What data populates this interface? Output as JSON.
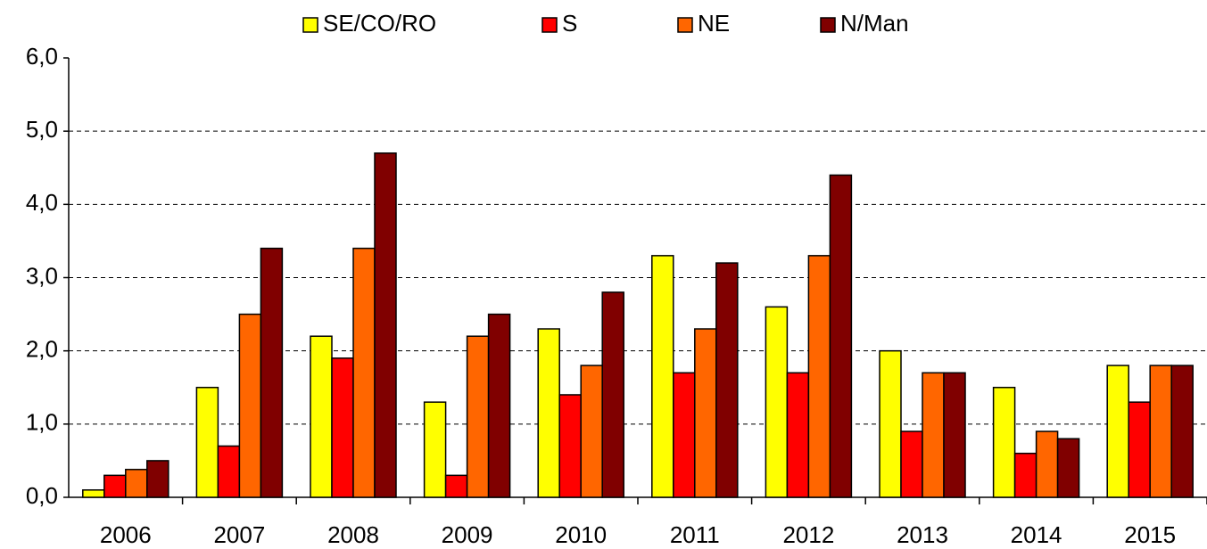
{
  "chart_data": {
    "type": "bar",
    "categories": [
      "2006",
      "2007",
      "2008",
      "2009",
      "2010",
      "2011",
      "2012",
      "2013",
      "2014",
      "2015"
    ],
    "series": [
      {
        "name": "SE/CO/RO",
        "color": "#ffff00",
        "values": [
          0.1,
          1.5,
          2.2,
          1.3,
          2.3,
          3.3,
          2.6,
          2.0,
          1.5,
          1.8
        ]
      },
      {
        "name": "S",
        "color": "#ff0000",
        "values": [
          0.3,
          0.7,
          1.9,
          0.3,
          1.4,
          1.7,
          1.7,
          0.9,
          0.6,
          1.3
        ]
      },
      {
        "name": "NE",
        "color": "#ff6600",
        "values": [
          0.38,
          2.5,
          3.4,
          2.2,
          1.8,
          2.3,
          3.3,
          1.7,
          0.9,
          1.8
        ]
      },
      {
        "name": "N/Man",
        "color": "#800000",
        "values": [
          0.5,
          3.4,
          4.7,
          2.5,
          2.8,
          3.2,
          4.4,
          1.7,
          0.8,
          1.8
        ]
      }
    ],
    "ylim": [
      0,
      6
    ],
    "yticks": [
      {
        "value": 0,
        "label": "0,0"
      },
      {
        "value": 1,
        "label": "1,0"
      },
      {
        "value": 2,
        "label": "2,0"
      },
      {
        "value": 3,
        "label": "3,0"
      },
      {
        "value": 4,
        "label": "4,0"
      },
      {
        "value": 5,
        "label": "5,0"
      },
      {
        "value": 6,
        "label": "6,0"
      }
    ],
    "grid": true,
    "legend": "top"
  }
}
